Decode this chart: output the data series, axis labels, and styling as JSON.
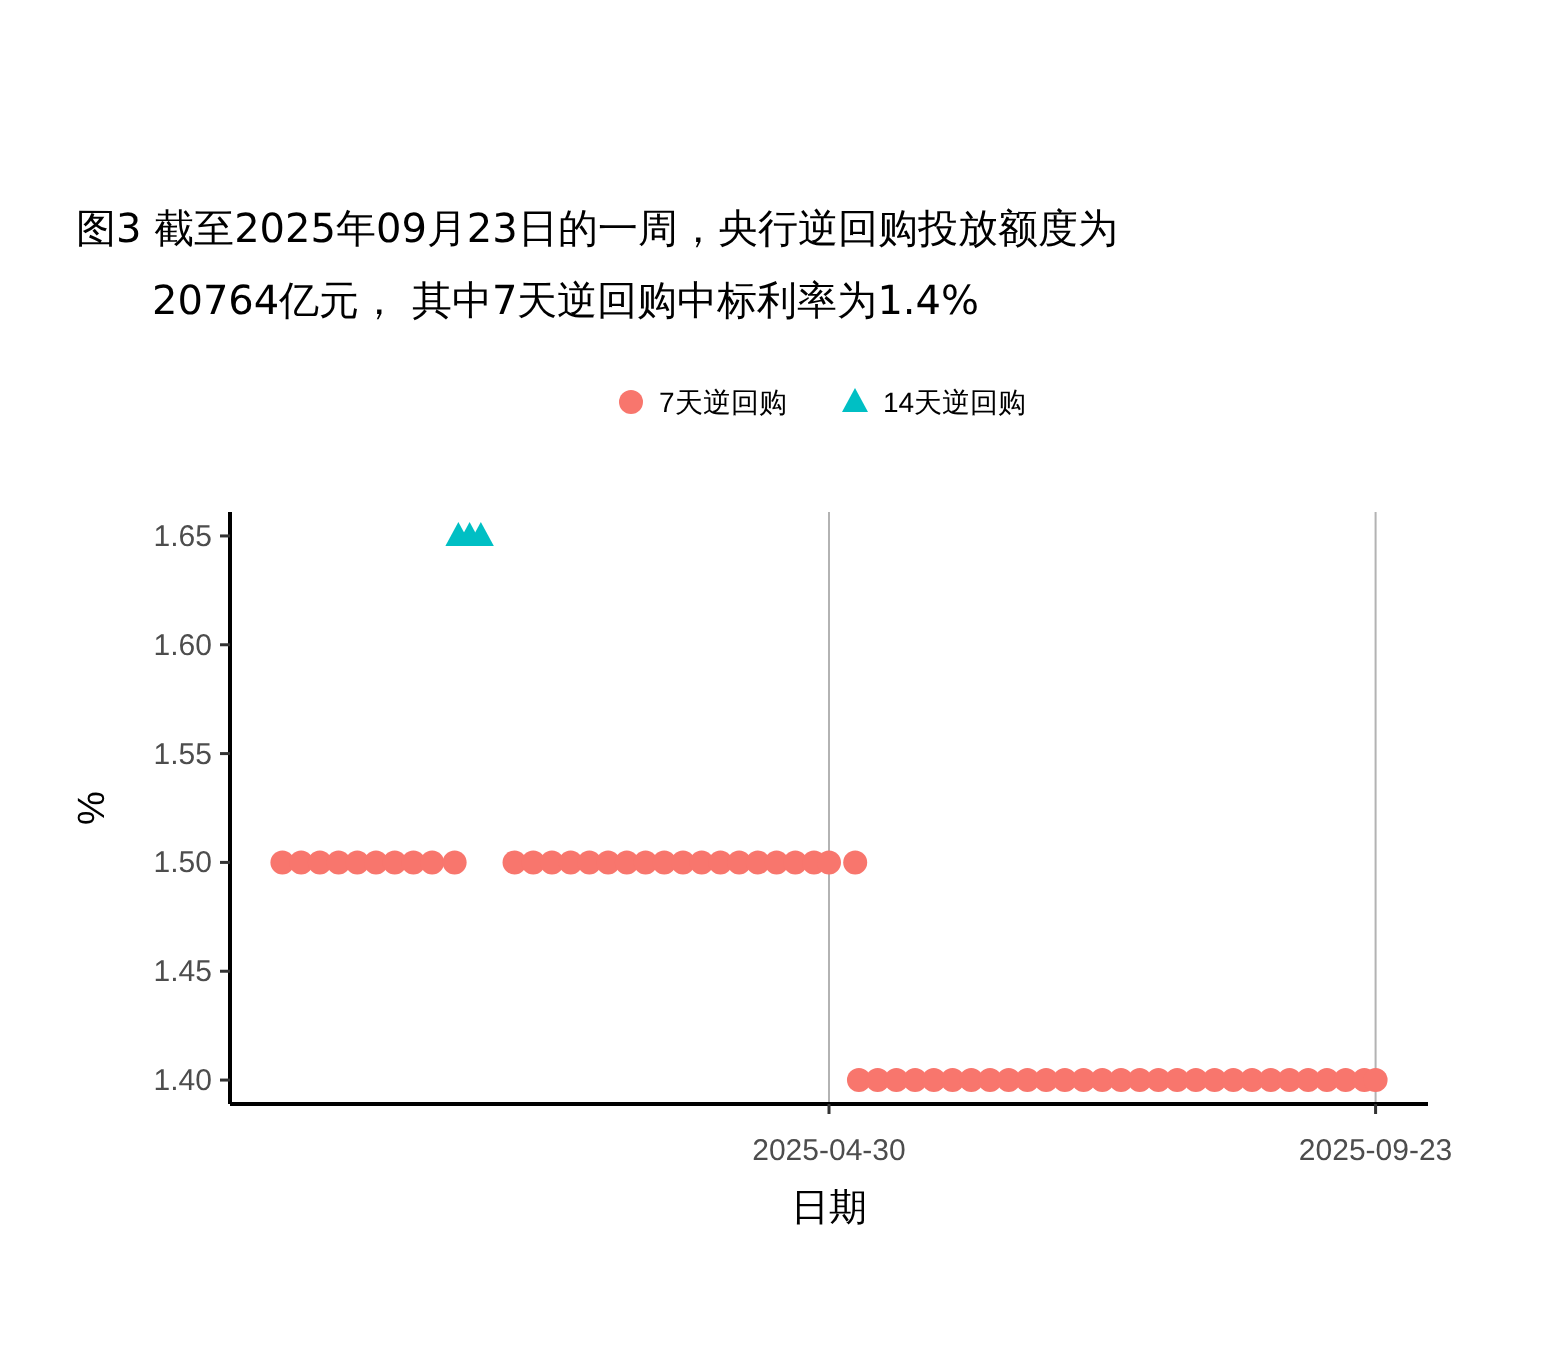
{
  "chart_data": {
    "type": "scatter",
    "title": "图3  截至2025年09月23日的一周，央行逆回购投放额度为20764亿元， 其中7天逆回购中标利率为1.4%",
    "xlabel": "日期",
    "ylabel": "%",
    "series": [
      {
        "name": "7天逆回购",
        "color": "#f8766d",
        "marker": "circle",
        "x": [
          "2024-12-05",
          "2024-12-10",
          "2024-12-15",
          "2024-12-20",
          "2024-12-25",
          "2024-12-30",
          "2025-01-04",
          "2025-01-09",
          "2025-01-14",
          "2025-01-20",
          "2025-02-05",
          "2025-02-10",
          "2025-02-15",
          "2025-02-20",
          "2025-02-25",
          "2025-03-02",
          "2025-03-07",
          "2025-03-12",
          "2025-03-17",
          "2025-03-22",
          "2025-03-27",
          "2025-04-01",
          "2025-04-06",
          "2025-04-11",
          "2025-04-16",
          "2025-04-21",
          "2025-04-26",
          "2025-04-30",
          "2025-05-07",
          "2025-05-08",
          "2025-05-13",
          "2025-05-18",
          "2025-05-23",
          "2025-05-28",
          "2025-06-02",
          "2025-06-07",
          "2025-06-12",
          "2025-06-17",
          "2025-06-22",
          "2025-06-27",
          "2025-07-02",
          "2025-07-07",
          "2025-07-12",
          "2025-07-17",
          "2025-07-22",
          "2025-07-27",
          "2025-08-01",
          "2025-08-06",
          "2025-08-11",
          "2025-08-16",
          "2025-08-21",
          "2025-08-26",
          "2025-08-31",
          "2025-09-05",
          "2025-09-10",
          "2025-09-15",
          "2025-09-20",
          "2025-09-23"
        ],
        "values": [
          1.5,
          1.5,
          1.5,
          1.5,
          1.5,
          1.5,
          1.5,
          1.5,
          1.5,
          1.5,
          1.5,
          1.5,
          1.5,
          1.5,
          1.5,
          1.5,
          1.5,
          1.5,
          1.5,
          1.5,
          1.5,
          1.5,
          1.5,
          1.5,
          1.5,
          1.5,
          1.5,
          1.5,
          1.5,
          1.4,
          1.4,
          1.4,
          1.4,
          1.4,
          1.4,
          1.4,
          1.4,
          1.4,
          1.4,
          1.4,
          1.4,
          1.4,
          1.4,
          1.4,
          1.4,
          1.4,
          1.4,
          1.4,
          1.4,
          1.4,
          1.4,
          1.4,
          1.4,
          1.4,
          1.4,
          1.4,
          1.4,
          1.4
        ]
      },
      {
        "name": "14天逆回购",
        "color": "#00bfc4",
        "marker": "triangle",
        "x": [
          "2025-01-21",
          "2025-01-24",
          "2025-01-27"
        ],
        "values": [
          1.65,
          1.65,
          1.65
        ]
      }
    ],
    "xlim": [
      "2024-11-21",
      "2025-10-07"
    ],
    "xticks": [
      "2025-04-30",
      "2025-09-23"
    ],
    "ylim": [
      1.389,
      1.661
    ],
    "yticks": [
      {
        "value": 1.4,
        "label": "1.40"
      },
      1.45,
      {
        "value": 1.5,
        "label": "1.50"
      },
      1.55,
      {
        "value": 1.6,
        "label": "1.60"
      },
      1.65
    ],
    "grid": "x",
    "legend": "top"
  }
}
